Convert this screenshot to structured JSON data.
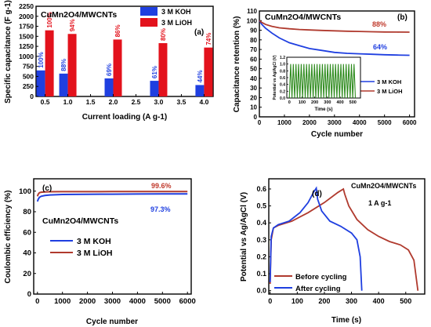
{
  "chart_data": [
    {
      "panel": "(a)",
      "type": "bar",
      "title": "CuMn2O4/MWCNTs",
      "xlabel": "Current loading (A g-1)",
      "ylabel": "Specific capacitance (F g-1)",
      "x_ticks": [
        "0.5",
        "1.0",
        "1.5",
        "2.0",
        "2.5",
        "3.0",
        "3.5",
        "4.0"
      ],
      "y_ticks": [
        "0",
        "250",
        "500",
        "750",
        "1000",
        "1250",
        "1500",
        "1750",
        "2000",
        "2250"
      ],
      "xlim": [
        0.3,
        4.2
      ],
      "ylim": [
        0,
        2250
      ],
      "categories": [
        0.5,
        1.0,
        2.0,
        3.0,
        4.0
      ],
      "series": [
        {
          "name": "3 M KOH",
          "color": "#1f3fe0",
          "values": [
            650,
            570,
            450,
            390,
            285
          ],
          "labels": [
            "100%",
            "88%",
            "69%",
            "61%",
            "44%"
          ]
        },
        {
          "name": "3 M LiOH",
          "color": "#e3121c",
          "values": [
            1650,
            1560,
            1420,
            1330,
            1220
          ],
          "labels": [
            "100%",
            "94%",
            "86%",
            "80%",
            "74%"
          ]
        }
      ]
    },
    {
      "panel": "(b)",
      "type": "line",
      "title": "CuMn2O4/MWCNTs",
      "xlabel": "Cycle number",
      "ylabel": "Capacitance retention (%)",
      "x_ticks": [
        "0",
        "1000",
        "2000",
        "3000",
        "4000",
        "5000",
        "6000"
      ],
      "y_ticks": [
        "0",
        "10",
        "20",
        "30",
        "40",
        "50",
        "60",
        "70",
        "80",
        "90",
        "100",
        "110"
      ],
      "xlim": [
        0,
        6200
      ],
      "ylim": [
        0,
        110
      ],
      "annotations": [
        "88%",
        "64%"
      ],
      "series": [
        {
          "name": "3 M KOH",
          "color": "#1f3fe0",
          "x": [
            0,
            100,
            250,
            500,
            800,
            1200,
            1600,
            2000,
            2500,
            3000,
            3500,
            4000,
            4500,
            5000,
            5500,
            6000
          ],
          "y": [
            100,
            96,
            92,
            87,
            82,
            77,
            74,
            71,
            69,
            67,
            66,
            65.5,
            65,
            64.5,
            64.2,
            64
          ]
        },
        {
          "name": "3 M LiOH",
          "color": "#b03a2e",
          "x": [
            0,
            100,
            250,
            500,
            800,
            1200,
            1600,
            2000,
            2500,
            3000,
            3500,
            4000,
            4500,
            5000,
            5500,
            6000
          ],
          "y": [
            100,
            98,
            96,
            94,
            92.5,
            91.5,
            90.8,
            90.3,
            89.8,
            89.4,
            89,
            88.7,
            88.4,
            88.2,
            88.1,
            88
          ]
        }
      ],
      "inset": {
        "xlabel": "Time (s)",
        "ylabel": "Potential vs Ag/AgCl (V)",
        "x_ticks": [
          "0",
          "100",
          "200",
          "300",
          "400",
          "500"
        ],
        "y_ticks": [
          "0.0",
          "0.2",
          "0.4",
          "0.6",
          "0.8",
          "1.0",
          "1.2"
        ],
        "xlim": [
          -20,
          560
        ],
        "ylim": [
          0,
          1.2
        ],
        "cycles": 25,
        "vmax": 1.0,
        "color": "#2e8b1e"
      }
    },
    {
      "panel": "(c)",
      "type": "line",
      "title": "CuMn2O4/MWCNTs",
      "xlabel": "Cycle number",
      "ylabel": "Coulombic efficiency (%)",
      "x_ticks": [
        "0",
        "1000",
        "2000",
        "3000",
        "4000",
        "5000",
        "6000"
      ],
      "y_ticks": [
        "0",
        "20",
        "40",
        "60",
        "80",
        "100"
      ],
      "xlim": [
        -150,
        6150
      ],
      "ylim": [
        0,
        112
      ],
      "annotations": [
        "99.6%",
        "97.3%"
      ],
      "series": [
        {
          "name": "3 M KOH",
          "color": "#1f3fe0",
          "x": [
            0,
            30,
            80,
            150,
            300,
            500,
            1000,
            2000,
            3000,
            4000,
            5000,
            6000
          ],
          "y": [
            90,
            92,
            94,
            95,
            95.8,
            96.3,
            96.8,
            97,
            97.1,
            97.2,
            97.3,
            97.3
          ]
        },
        {
          "name": "3 M LiOH",
          "color": "#b03a2e",
          "x": [
            0,
            30,
            80,
            150,
            300,
            500,
            1000,
            2000,
            3000,
            4000,
            5000,
            6000
          ],
          "y": [
            95,
            97,
            98.5,
            99,
            99.2,
            99.4,
            99.5,
            99.5,
            99.6,
            99.6,
            99.6,
            99.6
          ]
        }
      ]
    },
    {
      "panel": "(d)",
      "type": "line",
      "title": "CuMn2O4/MWCNTs",
      "subtitle": "1 A g-1",
      "xlabel": "Time (s)",
      "ylabel": "Potential vs Ag/AgCl (V)",
      "x_ticks": [
        "0",
        "100",
        "200",
        "300",
        "400",
        "500"
      ],
      "y_ticks": [
        "0.0",
        "0.1",
        "0.2",
        "0.3",
        "0.4",
        "0.5",
        "0.6"
      ],
      "xlim": [
        -5,
        570
      ],
      "ylim": [
        -0.02,
        0.66
      ],
      "series": [
        {
          "name": "Before cycling",
          "color": "#b03a2e",
          "x": [
            0,
            4,
            12,
            30,
            80,
            140,
            200,
            250,
            270,
            275,
            290,
            320,
            360,
            400,
            440,
            480,
            510,
            530,
            545
          ],
          "y": [
            0.04,
            0.3,
            0.37,
            0.385,
            0.41,
            0.46,
            0.52,
            0.58,
            0.6,
            0.57,
            0.5,
            0.42,
            0.36,
            0.32,
            0.29,
            0.27,
            0.24,
            0.18,
            0.0
          ]
        },
        {
          "name": "After cycling",
          "color": "#1f3fe0",
          "x": [
            0,
            4,
            12,
            30,
            70,
            110,
            140,
            160,
            170,
            175,
            190,
            220,
            260,
            300,
            320,
            332,
            338
          ],
          "y": [
            0.05,
            0.32,
            0.37,
            0.39,
            0.41,
            0.46,
            0.52,
            0.58,
            0.605,
            0.54,
            0.47,
            0.41,
            0.38,
            0.34,
            0.3,
            0.2,
            0.0
          ]
        }
      ]
    }
  ]
}
